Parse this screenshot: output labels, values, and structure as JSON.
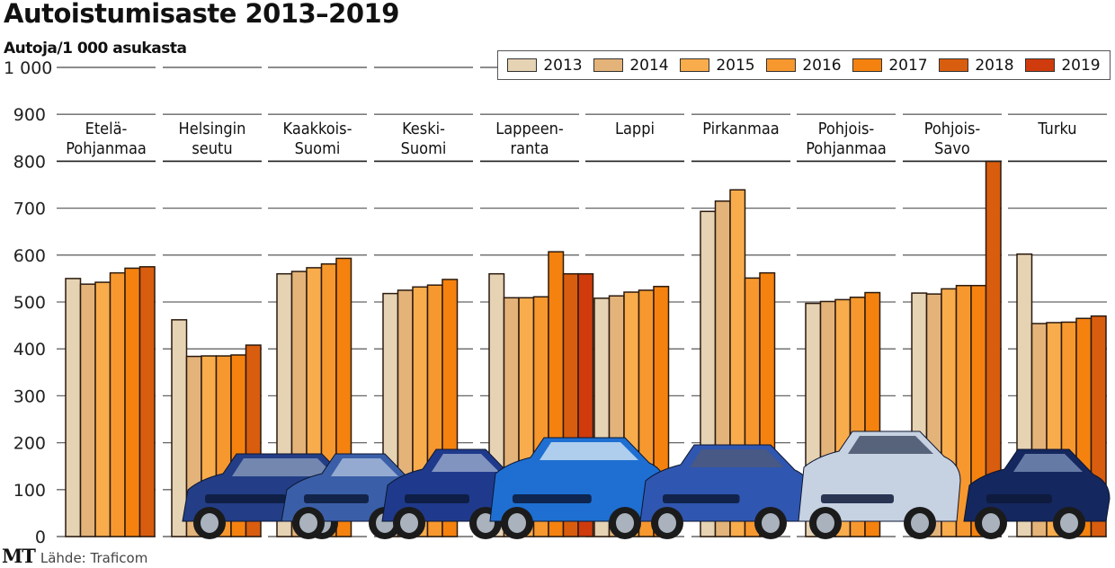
{
  "header": {
    "title": "Autoistumisaste 2013–2019",
    "subtitle": "Autoja/1 000 asukasta"
  },
  "footer": {
    "logo": "MT",
    "source": "Lähde: Traficom"
  },
  "colors": {
    "2013": "#e6d3b4",
    "2014": "#e3b37a",
    "2015": "#f8ac4c",
    "2016": "#f7982f",
    "2017": "#f5820f",
    "2018": "#d95d0e",
    "2019": "#cf3b0d",
    "gridline": "#666666",
    "bar_stroke": "#2b1a0e"
  },
  "chart_data": {
    "type": "bar",
    "title": "Autoistumisaste 2013–2019",
    "ylabel": "Autoja/1 000 asukasta",
    "xlabel": "",
    "ylim": [
      0,
      1000
    ],
    "yticks": [
      0,
      100,
      200,
      300,
      400,
      500,
      600,
      700,
      800,
      900,
      1000
    ],
    "ytick_labels": [
      "0",
      "100",
      "200",
      "300",
      "400",
      "500",
      "600",
      "700",
      "800",
      "900",
      "1 000"
    ],
    "grid": true,
    "legend_position": "top-right",
    "series_names": [
      "2013",
      "2014",
      "2015",
      "2016",
      "2017",
      "2018",
      "2019"
    ],
    "categories": [
      {
        "label_lines": [
          "Etelä-",
          "Pohjanmaa"
        ],
        "values": [
          550,
          538,
          542,
          562,
          572,
          575,
          null
        ]
      },
      {
        "label_lines": [
          "Helsingin",
          "seutu"
        ],
        "values": [
          462,
          384,
          385,
          385,
          387,
          408,
          null
        ]
      },
      {
        "label_lines": [
          "Kaakkois-",
          "Suomi"
        ],
        "values": [
          560,
          565,
          573,
          581,
          593,
          null,
          null
        ]
      },
      {
        "label_lines": [
          "Keski-",
          "Suomi"
        ],
        "values": [
          518,
          525,
          532,
          536,
          548,
          null,
          null
        ]
      },
      {
        "label_lines": [
          "Lappeen-",
          "ranta"
        ],
        "values": [
          560,
          509,
          509,
          511,
          607,
          560,
          560
        ]
      },
      {
        "label_lines": [
          "Lappi"
        ],
        "values": [
          508,
          513,
          521,
          525,
          533,
          null,
          null
        ]
      },
      {
        "label_lines": [
          "Pirkanmaa"
        ],
        "values": [
          693,
          715,
          739,
          551,
          562,
          null,
          null
        ]
      },
      {
        "label_lines": [
          "Pohjois-",
          "Pohjanmaa"
        ],
        "values": [
          497,
          501,
          505,
          510,
          520,
          null,
          null
        ]
      },
      {
        "label_lines": [
          "Pohjois-",
          "Savo"
        ],
        "values": [
          519,
          517,
          528,
          535,
          535,
          800,
          null
        ]
      },
      {
        "label_lines": [
          "Turku"
        ],
        "values": [
          602,
          454,
          456,
          457,
          465,
          470,
          null
        ]
      }
    ]
  },
  "illustration": {
    "description": "row of blue and silver cars in front of lower bars",
    "cars": [
      "blue-sedan",
      "blue-hatchback",
      "dark-blue-minivan",
      "bright-blue-hatchback",
      "blue-sedan-front",
      "silver-suv",
      "navy-sports-car"
    ]
  }
}
